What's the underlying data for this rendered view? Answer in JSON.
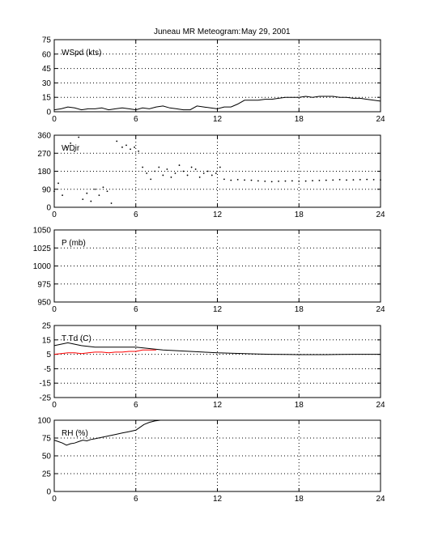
{
  "header": {
    "station": "Juneau MR Meteogram:",
    "date": "May 29, 2001"
  },
  "colors": {
    "axis": "#000000",
    "grid": "#000000",
    "series_black": "#000000",
    "series_red": "#ff0000"
  },
  "chart_data": [
    {
      "type": "line",
      "label": "WSpd (kts)",
      "xlim": [
        0,
        24
      ],
      "xticks": [
        0,
        6,
        12,
        18,
        24
      ],
      "ylim": [
        0,
        75
      ],
      "yticks": [
        0,
        15,
        30,
        45,
        60,
        75
      ],
      "grid": true,
      "series": [
        {
          "color": "#000000",
          "style": "line",
          "x": [
            0,
            0.5,
            1,
            1.5,
            2,
            2.5,
            3,
            3.5,
            4,
            4.5,
            5,
            5.5,
            6,
            6.5,
            7,
            7.5,
            8,
            8.5,
            9,
            9.5,
            10,
            10.5,
            11,
            11.5,
            12,
            12.5,
            13,
            13.5,
            14,
            14.5,
            15,
            15.5,
            16,
            16.5,
            17,
            17.5,
            18,
            18.5,
            19,
            19.5,
            20,
            20.5,
            21,
            21.5,
            22,
            22.5,
            23,
            23.5,
            24
          ],
          "y": [
            2,
            3,
            5,
            4,
            2,
            3,
            3,
            4,
            2,
            3,
            4,
            3,
            2,
            4,
            3,
            5,
            6,
            4,
            3,
            2,
            2,
            6,
            5,
            4,
            3,
            5,
            5,
            8,
            12,
            12,
            12,
            13,
            13,
            14,
            15,
            15,
            15,
            16,
            15,
            16,
            16,
            16,
            15,
            15,
            14,
            14,
            13,
            12,
            11
          ]
        }
      ]
    },
    {
      "type": "scatter",
      "label": "WDir",
      "xlim": [
        0,
        24
      ],
      "xticks": [
        0,
        6,
        12,
        18,
        24
      ],
      "ylim": [
        0,
        360
      ],
      "yticks": [
        0,
        90,
        180,
        270,
        360
      ],
      "grid": true,
      "series": [
        {
          "color": "#000000",
          "style": "dots",
          "x": [
            0,
            0.3,
            0.6,
            0.9,
            1.2,
            1.5,
            1.8,
            2.1,
            2.4,
            2.7,
            3,
            3.3,
            3.6,
            3.9,
            4.2,
            4.6,
            5,
            5.3,
            5.6,
            5.9,
            6.2,
            6.5,
            6.8,
            7.1,
            7.4,
            7.7,
            8,
            8.3,
            8.6,
            8.9,
            9.2,
            9.5,
            9.8,
            10.1,
            10.4,
            10.7,
            11,
            11.3,
            11.6,
            11.9,
            12.2,
            12.5,
            13,
            13.5,
            14,
            14.5,
            15,
            15.5,
            16,
            16.5,
            17,
            17.5,
            18,
            18.5,
            19,
            19.5,
            20,
            20.5,
            21,
            21.5,
            22,
            22.5,
            23,
            23.5,
            24
          ],
          "y": [
            80,
            120,
            60,
            300,
            320,
            280,
            350,
            40,
            70,
            30,
            90,
            60,
            100,
            80,
            20,
            330,
            300,
            310,
            290,
            300,
            280,
            200,
            170,
            140,
            180,
            200,
            160,
            190,
            150,
            170,
            210,
            180,
            160,
            200,
            190,
            150,
            170,
            180,
            160,
            170,
            200,
            140,
            135,
            138,
            136,
            135,
            132,
            130,
            128,
            130,
            131,
            132,
            130,
            131,
            133,
            134,
            135,
            136,
            138,
            136,
            137,
            138,
            139,
            138,
            137
          ]
        }
      ]
    },
    {
      "type": "line",
      "label": "P (mb)",
      "xlim": [
        0,
        24
      ],
      "xticks": [
        0,
        6,
        12,
        18,
        24
      ],
      "ylim": [
        950,
        1050
      ],
      "yticks": [
        950,
        975,
        1000,
        1025,
        1050
      ],
      "grid": true,
      "series": []
    },
    {
      "type": "line",
      "label": "T Td (C)",
      "xlim": [
        0,
        24
      ],
      "xticks": [
        0,
        6,
        12,
        18,
        24
      ],
      "ylim": [
        -25,
        25
      ],
      "yticks": [
        -25,
        -15,
        -5,
        5,
        15,
        25
      ],
      "grid": true,
      "series": [
        {
          "color": "#000000",
          "style": "line",
          "x": [
            0,
            0.5,
            1,
            1.5,
            2,
            3,
            4,
            5,
            6,
            7,
            8,
            9,
            10,
            11,
            12,
            13,
            14,
            15,
            16,
            17,
            18,
            19,
            20,
            21,
            22,
            23,
            24
          ],
          "y": [
            11,
            12,
            13,
            12,
            11,
            10,
            10,
            10,
            10,
            9,
            8,
            7.5,
            7,
            6.5,
            6,
            5.8,
            5.5,
            5.2,
            5,
            4.9,
            4.8,
            4.8,
            4.8,
            4.9,
            5,
            5,
            5
          ]
        },
        {
          "color": "#ff0000",
          "style": "line",
          "x": [
            0,
            0.5,
            1,
            1.5,
            2,
            2.5,
            3,
            3.5,
            4,
            4.5,
            5,
            5.5,
            6,
            6.5,
            7,
            7.5
          ],
          "y": [
            5,
            5.5,
            6,
            6,
            5.5,
            6,
            6.5,
            6.5,
            6,
            6.5,
            6.5,
            7,
            7,
            8,
            8,
            8
          ]
        }
      ]
    },
    {
      "type": "line",
      "label": "RH (%)",
      "xlim": [
        0,
        24
      ],
      "xticks": [
        0,
        6,
        12,
        18,
        24
      ],
      "ylim": [
        0,
        100
      ],
      "yticks": [
        0,
        25,
        50,
        75,
        100
      ],
      "grid": true,
      "series": [
        {
          "color": "#000000",
          "style": "line",
          "x": [
            0,
            0.3,
            0.6,
            0.9,
            1.2,
            1.5,
            1.8,
            2.1,
            2.4,
            2.7,
            3,
            3.5,
            4,
            4.5,
            5,
            5.5,
            6,
            6.3,
            6.6,
            7,
            7.4,
            7.8
          ],
          "y": [
            72,
            70,
            68,
            65,
            67,
            68,
            70,
            72,
            71,
            73,
            74,
            76,
            78,
            80,
            82,
            84,
            86,
            90,
            94,
            97,
            99,
            100
          ]
        }
      ]
    }
  ]
}
